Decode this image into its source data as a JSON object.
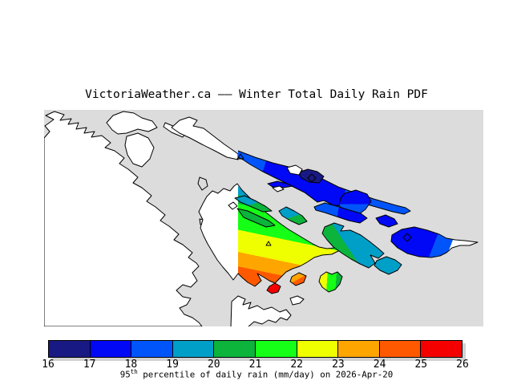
{
  "title": "VictoriaWeather.ca —— Winter Total Daily Rain PDF",
  "map": {
    "sea_color": "#dcdcdc",
    "land_color": "#ffffff",
    "units": "mm/day",
    "value_range": [
      16,
      26
    ]
  },
  "colorbar": {
    "tick_labels": [
      "16",
      "17",
      "18",
      "19",
      "20",
      "21",
      "22",
      "23",
      "24",
      "25",
      "26"
    ],
    "segment_colors": [
      "#191983",
      "#0008f5",
      "#0055fa",
      "#009fc8",
      "#0cb43c",
      "#16ff16",
      "#f0ff00",
      "#ffa500",
      "#ff5900",
      "#f50000"
    ],
    "caption": {
      "base": "95",
      "sup": "th",
      "rest": " percentile of daily rain (mm/day) on 2026-Apr-20"
    }
  },
  "chart_data": {
    "type": "heatmap",
    "title": "VictoriaWeather.ca —— Winter Total Daily Rain PDF",
    "legend": "95th percentile of daily rain (mm/day) on 2026-Apr-20",
    "scale_ticks": [
      16,
      17,
      18,
      19,
      20,
      21,
      22,
      23,
      24,
      25,
      26
    ],
    "scale_colors": [
      "#191983",
      "#0008f5",
      "#0055fa",
      "#009fc8",
      "#0cb43c",
      "#16ff16",
      "#f0ff00",
      "#ffa500",
      "#ff5900",
      "#f50000"
    ],
    "regions": [
      {
        "name": "northeast-gulf-island-chain",
        "value_mm_day": "16-19"
      },
      {
        "name": "middle-gulf-islands",
        "value_mm_day": "19-21"
      },
      {
        "name": "saanich-peninsula",
        "value_mm_day": "20-25"
      },
      {
        "name": "small-orange-islet",
        "value_mm_day": "23-25"
      },
      {
        "name": "small-red-islet",
        "value_mm_day": "25-26"
      },
      {
        "name": "yellow-green-islet",
        "value_mm_day": "20-23"
      }
    ]
  }
}
